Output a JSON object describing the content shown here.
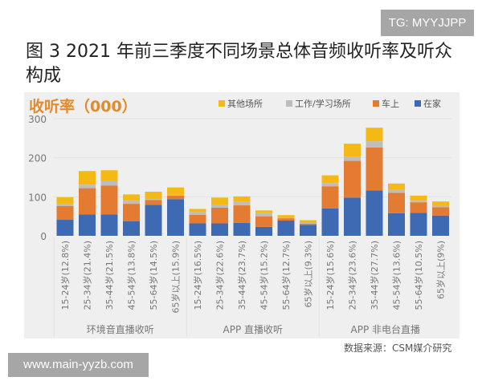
{
  "watermark_top": "TG: MYYJJPP",
  "watermark_bottom": "www.main-yyzb.com",
  "chart_data": {
    "type": "bar",
    "stacked": true,
    "title": "图 3 2021 年前三季度不同场景总体音频收听率及听众构成",
    "ylabel": "收听率（000）",
    "ylim": [
      0,
      300
    ],
    "yticks": [
      "0",
      "100",
      "200",
      "300"
    ],
    "grid": true,
    "legend_position": "top-right",
    "groups": [
      {
        "name": "环境音直播收听",
        "count": 6
      },
      {
        "name": "APP 直播收听",
        "count": 6
      },
      {
        "name": "APP 非电台直播",
        "count": 6
      }
    ],
    "categories": [
      "15-24岁(12.8%)",
      "25-34岁(21.4%)",
      "35-44岁(21.5%)",
      "45-54岁(13.8%)",
      "55-64岁(14.5%)",
      "65岁以上(15.9%)",
      "15-24岁(16.5%)",
      "25-34岁(22.6%)",
      "35-44岁(23.7%)",
      "45-54岁(15.2%)",
      "55-64岁(12.7%)",
      "65岁以上(9.3%)",
      "15-24岁(15.6%)",
      "25-34岁(23.6%)",
      "35-44岁(27.7%)",
      "45-54岁(13.6%)",
      "55-64岁(10.5%)",
      "65岁以上(9%)"
    ],
    "series": [
      {
        "name": "在家",
        "color": "#3d6ab3",
        "values": [
          41,
          55,
          55,
          37,
          79,
          94,
          32,
          32,
          33,
          23,
          39,
          28,
          70,
          98,
          116,
          58,
          59,
          52
        ]
      },
      {
        "name": "车上",
        "color": "#e37b32",
        "values": [
          35,
          67,
          74,
          45,
          13,
          9,
          22,
          40,
          45,
          27,
          6,
          3,
          57,
          94,
          110,
          52,
          27,
          21
        ]
      },
      {
        "name": "工作/学习场所",
        "color": "#bdbdbd",
        "values": [
          5,
          9,
          11,
          8,
          2,
          2,
          7,
          8,
          9,
          9,
          1,
          2,
          8,
          11,
          16,
          8,
          4,
          4
        ]
      },
      {
        "name": "其他场所",
        "color": "#f5b915",
        "values": [
          18,
          35,
          28,
          16,
          19,
          19,
          8,
          18,
          14,
          6,
          7,
          7,
          20,
          33,
          35,
          16,
          13,
          11
        ]
      }
    ],
    "legend_order": [
      "其他场所",
      "工作/学习场所",
      "车上",
      "在家"
    ],
    "source": "数据来源：CSM媒介研究"
  }
}
